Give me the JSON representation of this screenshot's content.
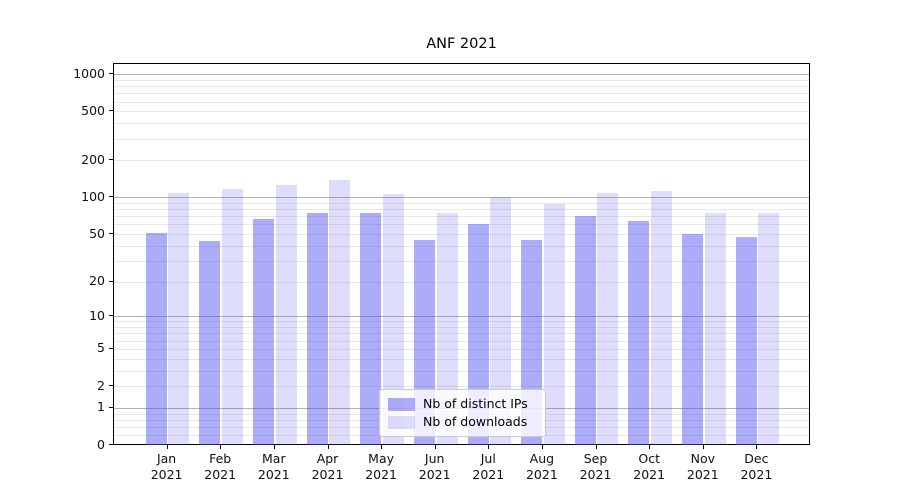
{
  "title": "ANF 2021",
  "colors": {
    "bar_ips": "rgba(70,70,240,0.45)",
    "bar_downloads": "rgba(70,70,240,0.18)",
    "grid_major": "#b3b3b3",
    "grid_minor": "#e8e8e8",
    "axis": "#000000",
    "background": "#ffffff",
    "legend_border": "#cccccc"
  },
  "chart_data": {
    "type": "bar",
    "title": "ANF 2021",
    "categories": [
      "Jan 2021",
      "Feb 2021",
      "Mar 2021",
      "Apr 2021",
      "May 2021",
      "Jun 2021",
      "Jul 2021",
      "Aug 2021",
      "Sep 2021",
      "Oct 2021",
      "Nov 2021",
      "Dec 2021"
    ],
    "series": [
      {
        "name": "Nb of distinct IPs",
        "color": "rgba(70,70,240,0.45)",
        "values": [
          51,
          44,
          67,
          75,
          74,
          45,
          61,
          45,
          70,
          64,
          50,
          47
        ]
      },
      {
        "name": "Nb of downloads",
        "color": "rgba(70,70,240,0.18)",
        "values": [
          108,
          116,
          126,
          138,
          107,
          75,
          100,
          89,
          108,
          113,
          75,
          74
        ]
      }
    ],
    "y_ticks": [
      0,
      1,
      2,
      5,
      10,
      20,
      50,
      100,
      200,
      500,
      1000
    ],
    "y_scale": "log10(1+value)",
    "ylim": [
      0,
      1210
    ],
    "xlabel": "",
    "ylabel": "",
    "grid": "both",
    "legend_position": "lower-center"
  }
}
